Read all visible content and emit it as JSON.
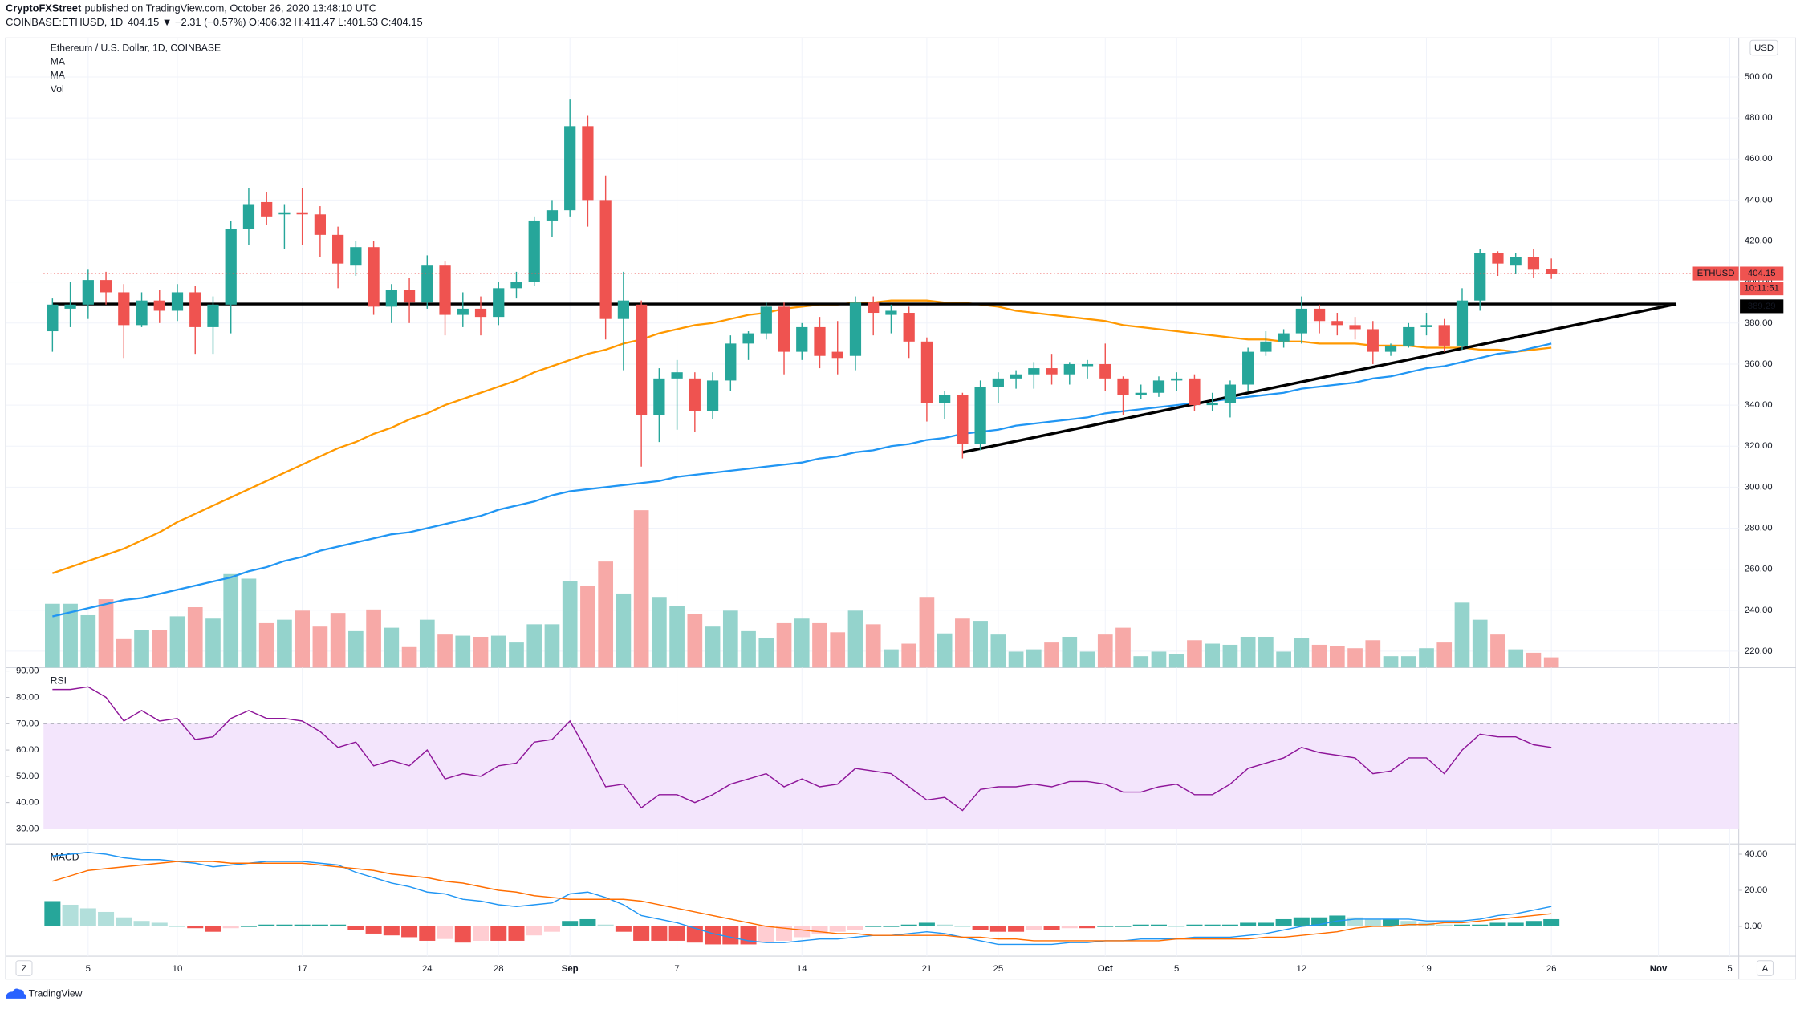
{
  "header": {
    "author": "CryptoFXStreet",
    "published": "published on TradingView.com, October 26, 2020 13:48:10 UTC",
    "symbol": "COINBASE:ETHUSD, 1D",
    "quote": "404.15 ▼ −2.31 (−0.57%) O:406.32 H:411.47 L:401.53 C:404.15"
  },
  "ui": {
    "currency": "USD",
    "zoom": "Z",
    "auto": "A",
    "brand": "TradingView"
  },
  "chart_data": {
    "type": "candlestick",
    "title": "Ethereum / U.S. Dollar, 1D, COINBASE",
    "x": [
      "2020-08-03",
      "2020-08-04",
      "2020-08-05",
      "2020-08-06",
      "2020-08-07",
      "2020-08-08",
      "2020-08-09",
      "2020-08-10",
      "2020-08-11",
      "2020-08-12",
      "2020-08-13",
      "2020-08-14",
      "2020-08-15",
      "2020-08-16",
      "2020-08-17",
      "2020-08-18",
      "2020-08-19",
      "2020-08-20",
      "2020-08-21",
      "2020-08-22",
      "2020-08-23",
      "2020-08-24",
      "2020-08-25",
      "2020-08-26",
      "2020-08-27",
      "2020-08-28",
      "2020-08-29",
      "2020-08-30",
      "2020-08-31",
      "2020-09-01",
      "2020-09-02",
      "2020-09-03",
      "2020-09-04",
      "2020-09-05",
      "2020-09-06",
      "2020-09-07",
      "2020-09-08",
      "2020-09-09",
      "2020-09-10",
      "2020-09-11",
      "2020-09-12",
      "2020-09-13",
      "2020-09-14",
      "2020-09-15",
      "2020-09-16",
      "2020-09-17",
      "2020-09-18",
      "2020-09-19",
      "2020-09-20",
      "2020-09-21",
      "2020-09-22",
      "2020-09-23",
      "2020-09-24",
      "2020-09-25",
      "2020-09-26",
      "2020-09-27",
      "2020-09-28",
      "2020-09-29",
      "2020-09-30",
      "2020-10-01",
      "2020-10-02",
      "2020-10-03",
      "2020-10-04",
      "2020-10-05",
      "2020-10-06",
      "2020-10-07",
      "2020-10-08",
      "2020-10-09",
      "2020-10-10",
      "2020-10-11",
      "2020-10-12",
      "2020-10-13",
      "2020-10-14",
      "2020-10-15",
      "2020-10-16",
      "2020-10-17",
      "2020-10-18",
      "2020-10-19",
      "2020-10-20",
      "2020-10-21",
      "2020-10-22",
      "2020-10-23",
      "2020-10-24",
      "2020-10-25",
      "2020-10-26"
    ],
    "open": [
      376,
      387,
      389,
      401,
      395,
      379,
      391,
      386,
      395,
      378,
      389,
      426,
      439,
      433,
      434,
      433,
      423,
      408,
      417,
      388,
      396,
      390,
      408,
      384,
      387,
      383,
      397,
      400,
      430,
      435,
      476,
      440,
      382,
      389,
      335,
      353,
      353,
      337,
      352,
      370,
      375,
      388,
      366,
      378,
      366,
      364,
      390,
      384,
      385,
      371,
      341,
      345,
      321,
      349,
      353,
      355,
      358,
      355,
      359,
      360,
      353,
      345,
      346,
      352,
      353,
      340,
      341,
      350,
      366,
      371,
      375,
      387,
      381,
      379,
      377,
      366,
      369,
      378,
      379,
      369,
      391,
      414,
      408,
      412,
      406.32
    ],
    "high": [
      392,
      400,
      406,
      405,
      399,
      395,
      396,
      399,
      398,
      393,
      430,
      446,
      444,
      438,
      446,
      437,
      427,
      420,
      420,
      399,
      402,
      413,
      410,
      395,
      393,
      400,
      405,
      432,
      440,
      489,
      481,
      452,
      405,
      391,
      358,
      362,
      356,
      356,
      374,
      376,
      390,
      390,
      380,
      383,
      381,
      393,
      393,
      389,
      388,
      373,
      347,
      346,
      352,
      356,
      357,
      361,
      365,
      361,
      362,
      370,
      354,
      350,
      354,
      356,
      355,
      346,
      352,
      368,
      376,
      377,
      393,
      389,
      385,
      383,
      381,
      370,
      380,
      385,
      382,
      397,
      416,
      415,
      414,
      416,
      411.47
    ],
    "low": [
      366,
      378,
      382,
      389,
      363,
      378,
      380,
      381,
      365,
      365,
      375,
      418,
      428,
      416,
      418,
      412,
      397,
      403,
      384,
      380,
      380,
      387,
      374,
      378,
      374,
      379,
      392,
      398,
      422,
      432,
      427,
      372,
      357,
      310,
      322,
      328,
      327,
      333,
      347,
      362,
      372,
      355,
      362,
      358,
      355,
      357,
      374,
      375,
      363,
      332,
      333,
      314,
      318,
      341,
      348,
      348,
      350,
      350,
      353,
      347,
      335,
      343,
      344,
      347,
      337,
      337,
      334,
      347,
      364,
      368,
      370,
      375,
      374,
      372,
      360,
      364,
      368,
      374,
      366,
      367,
      386,
      403,
      404,
      402,
      401.53
    ],
    "close": [
      389,
      389,
      401,
      395,
      379,
      391,
      386,
      395,
      378,
      389,
      426,
      438,
      432,
      434,
      433,
      423,
      409,
      417,
      388,
      396,
      390,
      408,
      384,
      387,
      383,
      397,
      400,
      430,
      435,
      476,
      440,
      382,
      391,
      335,
      353,
      356,
      337,
      352,
      370,
      375,
      388,
      366,
      378,
      364,
      363,
      390,
      385,
      386,
      371,
      341,
      345,
      321,
      349,
      353,
      355,
      358,
      355,
      360,
      360,
      353,
      345,
      346,
      352,
      353,
      340,
      341,
      350,
      366,
      371,
      375,
      387,
      381,
      379,
      377,
      366,
      369,
      378,
      379,
      369,
      391,
      414,
      409,
      412,
      406,
      404.15
    ],
    "up_color": "#26a69a",
    "down_color": "#ef5350",
    "xlim": [
      "2020-08-03",
      "2020-11-05"
    ],
    "xticks": [
      {
        "value": "2020-08-05",
        "label": "5"
      },
      {
        "value": "2020-08-10",
        "label": "10"
      },
      {
        "value": "2020-08-17",
        "label": "17"
      },
      {
        "value": "2020-08-24",
        "label": "24"
      },
      {
        "value": "2020-08-28",
        "label": "28"
      },
      {
        "value": "2020-09-01",
        "label": "Sep"
      },
      {
        "value": "2020-09-07",
        "label": "7"
      },
      {
        "value": "2020-09-14",
        "label": "14"
      },
      {
        "value": "2020-09-21",
        "label": "21"
      },
      {
        "value": "2020-09-25",
        "label": "25"
      },
      {
        "value": "2020-10-01",
        "label": "Oct"
      },
      {
        "value": "2020-10-05",
        "label": "5"
      },
      {
        "value": "2020-10-12",
        "label": "12"
      },
      {
        "value": "2020-10-19",
        "label": "19"
      },
      {
        "value": "2020-10-26",
        "label": "26"
      },
      {
        "value": "2020-11-01",
        "label": "Nov"
      },
      {
        "value": "2020-11-05",
        "label": "5"
      }
    ],
    "ylim": [
      212,
      519
    ],
    "yticks": [
      {
        "value": 220,
        "label": "220.00"
      },
      {
        "value": 240,
        "label": "240.00"
      },
      {
        "value": 260,
        "label": "260.00"
      },
      {
        "value": 280,
        "label": "280.00"
      },
      {
        "value": 300,
        "label": "300.00"
      },
      {
        "value": 320,
        "label": "320.00"
      },
      {
        "value": 340,
        "label": "340.00"
      },
      {
        "value": 360,
        "label": "360.00"
      },
      {
        "value": 380,
        "label": "380.00"
      },
      {
        "value": 400,
        "label": "400.00"
      },
      {
        "value": 420,
        "label": "420.00"
      },
      {
        "value": 440,
        "label": "440.00"
      },
      {
        "value": 460,
        "label": "460.00"
      },
      {
        "value": 480,
        "label": "480.00"
      },
      {
        "value": 500,
        "label": "500.00"
      }
    ],
    "grid": true,
    "series": [
      {
        "name": "MA",
        "color": "#ff9800",
        "values": [
          258,
          261,
          264,
          267,
          270,
          274,
          278,
          283,
          287,
          291,
          295,
          299,
          303,
          307,
          311,
          315,
          319,
          322,
          326,
          329,
          333,
          336,
          340,
          343,
          346,
          349,
          352,
          356,
          359,
          362,
          365,
          367,
          370,
          372,
          375,
          377,
          379,
          380,
          382,
          384,
          385,
          387,
          388,
          389,
          389,
          390,
          390,
          391,
          391,
          391,
          390,
          390,
          389,
          388,
          386,
          385,
          384,
          383,
          382,
          381,
          379,
          378,
          377,
          376,
          375,
          374,
          373,
          372,
          372,
          371,
          371,
          370,
          370,
          370,
          369,
          369,
          369,
          368,
          368,
          368,
          367,
          367,
          366,
          367,
          368
        ]
      },
      {
        "name": "MA",
        "color": "#2196f3",
        "values": [
          237,
          239,
          241,
          243,
          245,
          246,
          248,
          250,
          252,
          254,
          256,
          259,
          261,
          264,
          266,
          269,
          271,
          273,
          275,
          277,
          278,
          280,
          282,
          284,
          286,
          289,
          291,
          293,
          296,
          298,
          299,
          300,
          301,
          302,
          303,
          305,
          306,
          307,
          308,
          309,
          310,
          311,
          312,
          314,
          315,
          317,
          318,
          320,
          321,
          323,
          324,
          326,
          327,
          328,
          330,
          331,
          332,
          333,
          334,
          336,
          337,
          338,
          339,
          340,
          341,
          342,
          343,
          344,
          345,
          346,
          348,
          349,
          350,
          351,
          353,
          354,
          356,
          358,
          359,
          361,
          363,
          365,
          366,
          368,
          370
        ]
      }
    ],
    "volume": {
      "name": "Vol",
      "up_color": "#94d3cc",
      "down_color": "#f7a9a7",
      "values": [
        56,
        56,
        46,
        60,
        25,
        33,
        33,
        45,
        53,
        43,
        82,
        78,
        39,
        42,
        50,
        36,
        48,
        32,
        51,
        35,
        18,
        42,
        29,
        28,
        27,
        28,
        22,
        38,
        38,
        76,
        72,
        93,
        65,
        138,
        62,
        54,
        47,
        36,
        50,
        32,
        26,
        39,
        43,
        39,
        31,
        50,
        38,
        16,
        21,
        62,
        30,
        43,
        41,
        29,
        14,
        16,
        22,
        27,
        14,
        29,
        35,
        10,
        14,
        12,
        24,
        21,
        20,
        27,
        27,
        14,
        26,
        20,
        19,
        17,
        24,
        10,
        10,
        17,
        22,
        57,
        42,
        29,
        16,
        13,
        9
      ]
    },
    "hline": {
      "value": 389.29,
      "x": [
        "2020-08-03",
        "2020-11-02"
      ],
      "color": "#000000"
    },
    "trendline": {
      "x": [
        "2020-09-23",
        "2020-11-02"
      ],
      "values": [
        317,
        389.29
      ],
      "color": "#000000"
    },
    "symbol_label": "ETHUSD",
    "countdown": "10:11:51",
    "rsi": {
      "type": "line",
      "name": "RSI",
      "color": "#8e1599",
      "band": [
        30,
        70
      ],
      "band_color": "#f3e5fc",
      "values": [
        83,
        83,
        84,
        80,
        71,
        75,
        71,
        72,
        64,
        65,
        72,
        75,
        72,
        72,
        71,
        67,
        61,
        63,
        54,
        56,
        54,
        60,
        49,
        51,
        50,
        54,
        55,
        63,
        64,
        71,
        59,
        46,
        47,
        38,
        43,
        43,
        40,
        43,
        47,
        49,
        51,
        46,
        49,
        46,
        47,
        53,
        52,
        51,
        46,
        41,
        42,
        37,
        45,
        46,
        46,
        47,
        46,
        48,
        48,
        47,
        44,
        44,
        46,
        47,
        43,
        43,
        47,
        53,
        55,
        57,
        61,
        59,
        58,
        57,
        51,
        52,
        57,
        57,
        51,
        60,
        66,
        65,
        65,
        62,
        61
      ],
      "ylim": [
        24.3,
        91.3
      ],
      "yticks": [
        {
          "value": 30,
          "label": "30.00"
        },
        {
          "value": 40,
          "label": "40.00"
        },
        {
          "value": 50,
          "label": "50.00"
        },
        {
          "value": 60,
          "label": "60.00"
        },
        {
          "value": 70,
          "label": "70.00"
        },
        {
          "value": 80,
          "label": "80.00"
        },
        {
          "value": 90,
          "label": "90.00"
        }
      ]
    },
    "macd": {
      "type": "macd",
      "name": "MACD",
      "series": [
        {
          "color": "#2196f3",
          "values": [
            39,
            40,
            41,
            40,
            38,
            37,
            37,
            36,
            35,
            33,
            34,
            35,
            36,
            36,
            36,
            35,
            34,
            30,
            27,
            24,
            22,
            19,
            18,
            15,
            14,
            12,
            11,
            12,
            13,
            18,
            19,
            16,
            12,
            6,
            4,
            2,
            -1,
            -4,
            -6,
            -8,
            -9,
            -9,
            -8,
            -7,
            -7,
            -6,
            -5,
            -5,
            -4,
            -3,
            -4,
            -6,
            -8,
            -10,
            -10,
            -10,
            -10,
            -9,
            -9,
            -8,
            -8,
            -7,
            -7,
            -7,
            -6,
            -6,
            -6,
            -5,
            -4,
            -2,
            0,
            1,
            3,
            4,
            4,
            4,
            4,
            3,
            3,
            3,
            4,
            6,
            7,
            9,
            11
          ]
        },
        {
          "color": "#ff6d00",
          "values": [
            25,
            28,
            31,
            32,
            33,
            34,
            35,
            36,
            36,
            36,
            35,
            35,
            35,
            35,
            35,
            34,
            33,
            32,
            31,
            29,
            28,
            27,
            25,
            24,
            22,
            20,
            19,
            17,
            16,
            15,
            15,
            15,
            15,
            14,
            12,
            10,
            8,
            6,
            4,
            2,
            0,
            -1,
            -2,
            -3,
            -4,
            -4,
            -5,
            -5,
            -5,
            -5,
            -5,
            -6,
            -6,
            -7,
            -7,
            -8,
            -8,
            -8,
            -8,
            -8,
            -8,
            -8,
            -8,
            -7,
            -7,
            -7,
            -7,
            -7,
            -6,
            -6,
            -5,
            -4,
            -3,
            -1,
            0,
            0,
            1,
            1,
            2,
            2,
            3,
            4,
            5,
            6,
            7
          ]
        }
      ],
      "histogram": {
        "values": [
          14,
          12,
          10,
          8,
          5,
          3,
          2,
          0,
          -1,
          -3,
          -1,
          0,
          1,
          1,
          1,
          1,
          1,
          -2,
          -4,
          -5,
          -6,
          -8,
          -7,
          -9,
          -8,
          -8,
          -8,
          -5,
          -3,
          3,
          4,
          1,
          -3,
          -8,
          -8,
          -8,
          -9,
          -10,
          -10,
          -10,
          -9,
          -8,
          -6,
          -4,
          -3,
          -2,
          0,
          0,
          1,
          2,
          1,
          0,
          -2,
          -3,
          -3,
          -2,
          -2,
          -1,
          -1,
          0,
          0,
          1,
          1,
          0,
          1,
          1,
          1,
          2,
          2,
          4,
          5,
          5,
          6,
          5,
          4,
          4,
          3,
          2,
          1,
          1,
          1,
          2,
          2,
          3,
          4
        ],
        "colors": {
          "grow_above": "#26a69a",
          "fall_above": "#b2dfdb",
          "grow_below": "#ffcdd2",
          "fall_below": "#ef5350"
        }
      },
      "ylim": [
        -16.5,
        45.7
      ],
      "yticks": [
        {
          "value": 0,
          "label": "0.00"
        },
        {
          "value": 20,
          "label": "20.00"
        },
        {
          "value": 40,
          "label": "40.00"
        }
      ]
    }
  }
}
